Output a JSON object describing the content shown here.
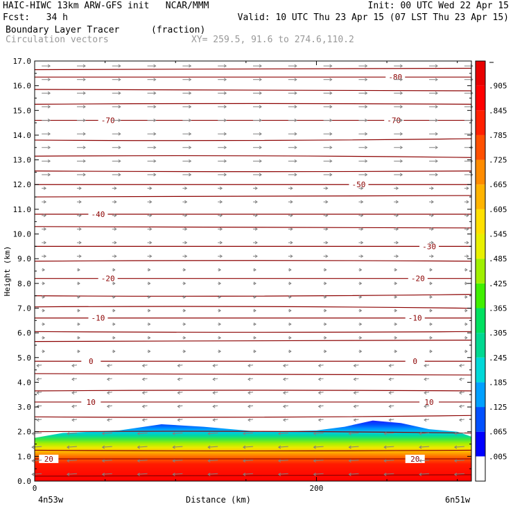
{
  "header": {
    "line1_left": "HAIC-HIWC 13km ARW-GFS init   NCAR/MMM",
    "line1_right": "Init: 00 UTC Wed 22 Apr 15",
    "line2_left": "Fcst:   34 h",
    "line2_right": "Valid: 10 UTC Thu 23 Apr 15 (07 LST Thu 23 Apr 15)",
    "field_name": "Boundary Layer Tracer",
    "field_units": "(fraction)",
    "vectors_label": "Circulation vectors",
    "xy_label": "XY= 259.5, 91.6 to 274.6,110.2"
  },
  "chart_data": {
    "type": "heatmap",
    "ylabel": "Height (km)",
    "xlabel": "Distance (km)",
    "ylim": [
      0,
      17
    ],
    "xlim": [
      0,
      310
    ],
    "y_ticks": [
      "0.0",
      "1.0",
      "2.0",
      "3.0",
      "4.0",
      "5.0",
      "6.0",
      "7.0",
      "8.0",
      "9.0",
      "10.0",
      "11.0",
      "12.0",
      "13.0",
      "14.0",
      "15.0",
      "16.0",
      "17.0"
    ],
    "x_ticks": [
      "0",
      "200"
    ],
    "x_tick_values": [
      0,
      200
    ],
    "x_endpoints": {
      "left": "4n53w",
      "right": "6n51w"
    },
    "colorbar": {
      "labels": [
        ".005",
        ".065",
        ".125",
        ".185",
        ".245",
        ".305",
        ".365",
        ".425",
        ".485",
        ".545",
        ".605",
        ".665",
        ".725",
        ".785",
        ".845",
        ".905"
      ],
      "colors": [
        "#ffffff",
        "#0000ff",
        "#0050ff",
        "#00a0ff",
        "#00d8d8",
        "#00d890",
        "#00e060",
        "#40f000",
        "#a0f000",
        "#e8f000",
        "#ffe000",
        "#ffb400",
        "#ff8c00",
        "#ff5000",
        "#ff2000",
        "#ff0000",
        "#e80000"
      ]
    },
    "tracer_top_profile": {
      "x_km": [
        0,
        20,
        60,
        90,
        120,
        160,
        200,
        220,
        240,
        260,
        280,
        300,
        310
      ],
      "top_km": [
        1.75,
        1.95,
        2.05,
        2.3,
        2.2,
        2.0,
        2.05,
        2.2,
        2.45,
        2.35,
        2.1,
        2.0,
        1.8
      ]
    },
    "temperature_contours": {
      "units": "degC",
      "levels": [
        {
          "label": "20",
          "height_km": 0.9,
          "label_x_km": [
            10,
            270
          ]
        },
        {
          "label": "10",
          "height_km": 3.2,
          "label_x_km": [
            40,
            280
          ]
        },
        {
          "label": "0",
          "height_km": 4.85,
          "label_x_km": [
            40,
            270
          ]
        },
        {
          "label": "-10",
          "height_km": 6.6,
          "label_x_km": [
            45,
            270
          ]
        },
        {
          "label": "-20",
          "height_km": 8.2,
          "label_x_km": [
            52,
            272
          ]
        },
        {
          "label": "-30",
          "height_km": 9.5,
          "label_x_km": [
            280
          ]
        },
        {
          "label": "-40",
          "height_km": 10.8,
          "label_x_km": [
            45
          ]
        },
        {
          "label": "-50",
          "height_km": 12.0,
          "label_x_km": [
            230
          ]
        },
        {
          "label": "-70",
          "height_km": 14.6,
          "label_x_km": [
            52,
            255
          ]
        },
        {
          "label": "-80",
          "height_km": 16.35,
          "label_x_km": [
            256
          ]
        }
      ],
      "unlabeled_heights_km": [
        0.2,
        1.25,
        2.0,
        2.6,
        3.65,
        4.35,
        5.65,
        6.05,
        7.05,
        7.5,
        8.9,
        10.3,
        11.5,
        12.55,
        13.15,
        13.8,
        15.25,
        15.85,
        16.65
      ]
    },
    "vectors": {
      "upper_direction": "east",
      "lower_direction": "west",
      "transition_height_km": 5.2
    }
  }
}
